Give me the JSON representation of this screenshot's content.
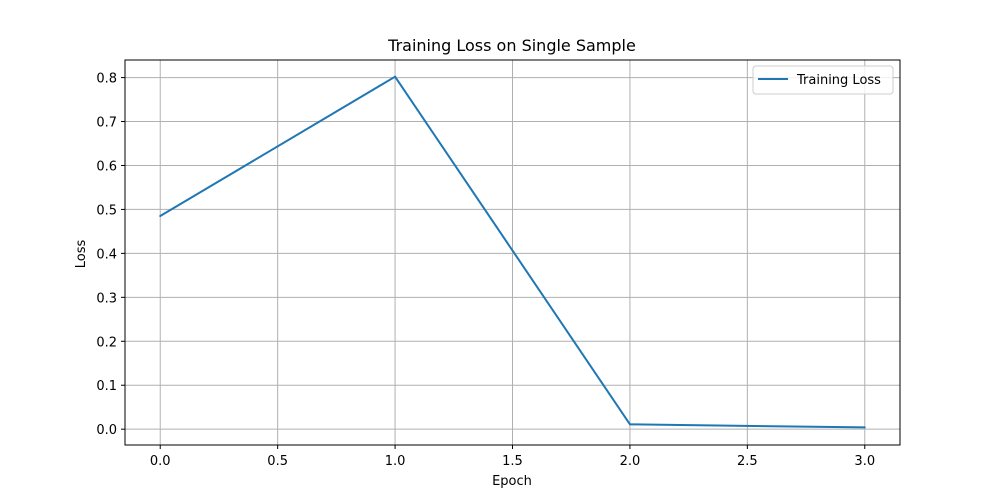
{
  "chart_data": {
    "type": "line",
    "title": "Training Loss on Single Sample",
    "xlabel": "Epoch",
    "ylabel": "Loss",
    "x": [
      0,
      1,
      2,
      3
    ],
    "series": [
      {
        "name": "Training Loss",
        "color": "#1f77b4",
        "values": [
          0.485,
          0.802,
          0.011,
          0.004
        ]
      }
    ],
    "xlim": [
      -0.15,
      3.15
    ],
    "ylim": [
      -0.036,
      0.84
    ],
    "x_ticks": [
      "0.0",
      "0.5",
      "1.0",
      "1.5",
      "2.0",
      "2.5",
      "3.0"
    ],
    "y_ticks": [
      "0.0",
      "0.1",
      "0.2",
      "0.3",
      "0.4",
      "0.5",
      "0.6",
      "0.7",
      "0.8"
    ],
    "grid": true,
    "grid_color": "#b0b0b0",
    "legend_position": "upper-right"
  }
}
